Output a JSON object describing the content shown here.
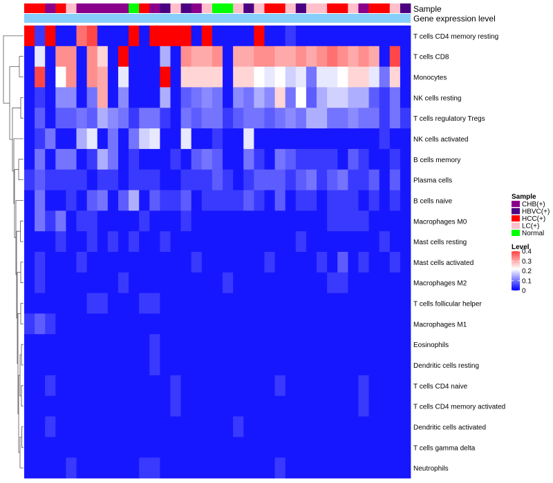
{
  "chart_data": {
    "type": "heatmap",
    "title": "",
    "annotation_tracks": [
      "Sample",
      "Gene expression level"
    ],
    "sample_legend": {
      "title": "Sample",
      "entries": [
        {
          "label": "CHB(+)",
          "color": "#8B008B"
        },
        {
          "label": "HBVC(+)",
          "color": "#4B0082"
        },
        {
          "label": "HCC(+)",
          "color": "#FF0000"
        },
        {
          "label": "LC(+)",
          "color": "#FFC0CB"
        },
        {
          "label": "Normal",
          "color": "#00FF00"
        }
      ]
    },
    "level_legend": {
      "title": "Level",
      "ticks": [
        "0.4",
        "0.3",
        "0.2",
        "0.1",
        "0"
      ],
      "range": [
        0,
        0.4
      ]
    },
    "colors": {
      "low": "#0000FF",
      "mid": "#FFFFFF",
      "high": "#FF0000",
      "expr_bar": "#87CEFA"
    },
    "sample_groups": [
      "HCC",
      "HCC",
      "CHB",
      "HCC",
      "LC",
      "CHB",
      "CHB",
      "CHB",
      "CHB",
      "CHB",
      "Normal",
      "HCC",
      "CHB",
      "HBVC",
      "LC",
      "HBVC",
      "CHB",
      "LC",
      "Normal",
      "Normal",
      "LC",
      "HBVC",
      "LC",
      "HCC",
      "HCC",
      "LC",
      "HBVC",
      "LC",
      "LC",
      "HCC",
      "HCC",
      "LC",
      "CHB",
      "HCC",
      "HCC",
      "LC",
      "HBVC"
    ],
    "cell_types": [
      "T cells CD4 memory resting",
      "T cells CD8",
      "Monocytes",
      "NK cells resting",
      "T cells regulatory  Tregs",
      "NK cells activated",
      "B cells memory",
      "Plasma cells",
      "B cells naive",
      "Macrophages M0",
      "Mast cells resting",
      "Mast cells activated",
      "Macrophages M2",
      "T cells follicular helper",
      "Macrophages M1",
      "Eosinophils",
      "Dendritic cells resting",
      "T cells CD4 naive",
      "T cells CD4 memory activated",
      "Dendritic cells activated",
      "T cells gamma delta",
      "Neutrophils"
    ],
    "values": [
      [
        0.4,
        0.05,
        0.4,
        0.02,
        0.02,
        0.32,
        0.35,
        0.02,
        0.02,
        0.02,
        0.4,
        0.02,
        0.4,
        0.4,
        0.4,
        0.4,
        0.02,
        0.4,
        0.02,
        0.02,
        0.02,
        0.02,
        0.4,
        0.02,
        0.02,
        0.05,
        0.02,
        0.02,
        0.02,
        0.02,
        0.02,
        0.02,
        0.02,
        0.02,
        0.02,
        0.02,
        0.02
      ],
      [
        0.02,
        0.2,
        0.02,
        0.3,
        0.3,
        0.02,
        0.3,
        0.25,
        0.02,
        0.4,
        0.02,
        0.02,
        0.02,
        0.15,
        0.02,
        0.3,
        0.28,
        0.28,
        0.3,
        0.02,
        0.28,
        0.28,
        0.3,
        0.3,
        0.28,
        0.28,
        0.3,
        0.28,
        0.3,
        0.32,
        0.3,
        0.28,
        0.3,
        0.28,
        0.02,
        0.35,
        0.02
      ],
      [
        0.02,
        0.35,
        0.02,
        0.22,
        0.3,
        0.02,
        0.3,
        0.28,
        0.02,
        0.2,
        0.02,
        0.02,
        0.02,
        0.4,
        0.02,
        0.25,
        0.25,
        0.25,
        0.25,
        0.02,
        0.25,
        0.25,
        0.22,
        0.2,
        0.22,
        0.18,
        0.2,
        0.1,
        0.2,
        0.2,
        0.22,
        0.25,
        0.25,
        0.2,
        0.1,
        0.25,
        0.02
      ],
      [
        0.02,
        0.05,
        0.02,
        0.12,
        0.12,
        0.02,
        0.1,
        0.28,
        0.02,
        0.12,
        0.02,
        0.02,
        0.02,
        0.15,
        0.02,
        0.08,
        0.1,
        0.12,
        0.1,
        0.02,
        0.12,
        0.1,
        0.15,
        0.12,
        0.25,
        0.1,
        0.22,
        0.08,
        0.15,
        0.18,
        0.18,
        0.15,
        0.15,
        0.08,
        0.05,
        0.1,
        0.02
      ],
      [
        0.02,
        0.08,
        0.02,
        0.08,
        0.08,
        0.1,
        0.08,
        0.15,
        0.12,
        0.1,
        0.05,
        0.1,
        0.1,
        0.05,
        0.02,
        0.1,
        0.08,
        0.1,
        0.1,
        0.05,
        0.08,
        0.1,
        0.1,
        0.08,
        0.1,
        0.12,
        0.1,
        0.15,
        0.15,
        0.1,
        0.1,
        0.12,
        0.1,
        0.1,
        0.05,
        0.1,
        0.05
      ],
      [
        0.02,
        0.05,
        0.1,
        0.02,
        0.02,
        0.15,
        0.2,
        0.02,
        0.1,
        0.02,
        0.1,
        0.18,
        0.2,
        0.02,
        0.02,
        0.2,
        0.02,
        0.02,
        0.05,
        0.02,
        0.02,
        0.2,
        0.02,
        0.02,
        0.02,
        0.02,
        0.02,
        0.02,
        0.02,
        0.02,
        0.02,
        0.02,
        0.02,
        0.02,
        0.05,
        0.02,
        0.02
      ],
      [
        0.02,
        0.1,
        0.02,
        0.1,
        0.1,
        0.02,
        0.05,
        0.15,
        0.1,
        0.02,
        0.05,
        0.02,
        0.02,
        0.02,
        0.05,
        0.02,
        0.08,
        0.1,
        0.08,
        0.02,
        0.02,
        0.1,
        0.05,
        0.02,
        0.1,
        0.08,
        0.05,
        0.05,
        0.05,
        0.05,
        0.02,
        0.08,
        0.05,
        0.02,
        0.02,
        0.05,
        0.02
      ],
      [
        0.05,
        0.08,
        0.05,
        0.05,
        0.05,
        0.05,
        0.02,
        0.05,
        0.05,
        0.02,
        0.05,
        0.05,
        0.05,
        0.02,
        0.02,
        0.05,
        0.05,
        0.05,
        0.08,
        0.05,
        0.02,
        0.05,
        0.08,
        0.08,
        0.08,
        0.05,
        0.08,
        0.1,
        0.05,
        0.08,
        0.1,
        0.05,
        0.05,
        0.08,
        0.02,
        0.08,
        0.02
      ],
      [
        0.02,
        0.1,
        0.02,
        0.02,
        0.05,
        0.02,
        0.08,
        0.1,
        0.02,
        0.08,
        0.15,
        0.02,
        0.08,
        0.05,
        0.05,
        0.08,
        0.02,
        0.05,
        0.05,
        0.05,
        0.05,
        0.08,
        0.05,
        0.02,
        0.08,
        0.02,
        0.05,
        0.05,
        0.02,
        0.05,
        0.05,
        0.05,
        0.02,
        0.05,
        0.02,
        0.05,
        0.02
      ],
      [
        0.02,
        0.1,
        0.05,
        0.1,
        0.02,
        0.05,
        0.05,
        0.02,
        0.02,
        0.02,
        0.02,
        0.05,
        0.02,
        0.02,
        0.02,
        0.05,
        0.02,
        0.02,
        0.02,
        0.02,
        0.02,
        0.02,
        0.02,
        0.02,
        0.02,
        0.02,
        0.02,
        0.02,
        0.02,
        0.05,
        0.05,
        0.05,
        0.05,
        0.02,
        0.02,
        0.02,
        0.02
      ],
      [
        0.02,
        0.02,
        0.02,
        0.05,
        0.02,
        0.02,
        0.05,
        0.02,
        0.05,
        0.02,
        0.05,
        0.02,
        0.02,
        0.05,
        0.02,
        0.02,
        0.02,
        0.02,
        0.02,
        0.02,
        0.02,
        0.02,
        0.02,
        0.02,
        0.02,
        0.02,
        0.05,
        0.02,
        0.02,
        0.02,
        0.02,
        0.02,
        0.02,
        0.02,
        0.05,
        0.02,
        0.02
      ],
      [
        0.02,
        0.05,
        0.02,
        0.02,
        0.02,
        0.05,
        0.02,
        0.02,
        0.02,
        0.02,
        0.02,
        0.02,
        0.02,
        0.02,
        0.02,
        0.02,
        0.05,
        0.02,
        0.02,
        0.02,
        0.02,
        0.02,
        0.02,
        0.05,
        0.02,
        0.02,
        0.02,
        0.02,
        0.05,
        0.02,
        0.08,
        0.02,
        0.05,
        0.02,
        0.02,
        0.05,
        0.02
      ],
      [
        0.02,
        0.05,
        0.02,
        0.02,
        0.02,
        0.02,
        0.02,
        0.02,
        0.02,
        0.05,
        0.02,
        0.02,
        0.02,
        0.02,
        0.02,
        0.02,
        0.02,
        0.02,
        0.02,
        0.05,
        0.02,
        0.02,
        0.02,
        0.02,
        0.02,
        0.02,
        0.02,
        0.02,
        0.02,
        0.05,
        0.05,
        0.02,
        0.02,
        0.02,
        0.02,
        0.02,
        0.02
      ],
      [
        0.02,
        0.02,
        0.02,
        0.02,
        0.02,
        0.02,
        0.05,
        0.05,
        0.02,
        0.02,
        0.02,
        0.05,
        0.05,
        0.02,
        0.02,
        0.02,
        0.02,
        0.02,
        0.02,
        0.02,
        0.02,
        0.02,
        0.02,
        0.02,
        0.02,
        0.02,
        0.02,
        0.02,
        0.02,
        0.02,
        0.02,
        0.02,
        0.02,
        0.02,
        0.02,
        0.02,
        0.02
      ],
      [
        0.05,
        0.08,
        0.05,
        0.02,
        0.02,
        0.02,
        0.02,
        0.02,
        0.02,
        0.02,
        0.02,
        0.02,
        0.02,
        0.02,
        0.02,
        0.02,
        0.02,
        0.02,
        0.02,
        0.02,
        0.02,
        0.02,
        0.02,
        0.02,
        0.02,
        0.02,
        0.02,
        0.02,
        0.02,
        0.02,
        0.02,
        0.02,
        0.02,
        0.02,
        0.02,
        0.02,
        0.02
      ],
      [
        0.02,
        0.02,
        0.02,
        0.02,
        0.02,
        0.02,
        0.02,
        0.02,
        0.02,
        0.02,
        0.02,
        0.02,
        0.05,
        0.02,
        0.02,
        0.02,
        0.02,
        0.02,
        0.02,
        0.02,
        0.02,
        0.02,
        0.02,
        0.02,
        0.02,
        0.02,
        0.02,
        0.02,
        0.02,
        0.02,
        0.02,
        0.02,
        0.02,
        0.02,
        0.02,
        0.02,
        0.02
      ],
      [
        0.02,
        0.02,
        0.02,
        0.02,
        0.02,
        0.02,
        0.02,
        0.02,
        0.02,
        0.02,
        0.02,
        0.02,
        0.05,
        0.02,
        0.02,
        0.02,
        0.02,
        0.02,
        0.02,
        0.02,
        0.02,
        0.02,
        0.02,
        0.02,
        0.02,
        0.02,
        0.02,
        0.02,
        0.02,
        0.02,
        0.02,
        0.02,
        0.02,
        0.02,
        0.02,
        0.02,
        0.02
      ],
      [
        0.02,
        0.02,
        0.05,
        0.02,
        0.02,
        0.02,
        0.02,
        0.02,
        0.02,
        0.02,
        0.02,
        0.02,
        0.02,
        0.02,
        0.05,
        0.02,
        0.02,
        0.02,
        0.02,
        0.02,
        0.02,
        0.02,
        0.02,
        0.02,
        0.05,
        0.02,
        0.02,
        0.02,
        0.02,
        0.02,
        0.02,
        0.02,
        0.05,
        0.02,
        0.02,
        0.02,
        0.02
      ],
      [
        0.02,
        0.02,
        0.02,
        0.02,
        0.02,
        0.02,
        0.02,
        0.02,
        0.02,
        0.02,
        0.02,
        0.02,
        0.02,
        0.02,
        0.05,
        0.02,
        0.02,
        0.02,
        0.02,
        0.02,
        0.02,
        0.02,
        0.02,
        0.02,
        0.02,
        0.02,
        0.02,
        0.02,
        0.02,
        0.02,
        0.02,
        0.02,
        0.05,
        0.02,
        0.02,
        0.02,
        0.02
      ],
      [
        0.02,
        0.02,
        0.05,
        0.02,
        0.02,
        0.02,
        0.02,
        0.02,
        0.02,
        0.02,
        0.02,
        0.02,
        0.02,
        0.02,
        0.02,
        0.02,
        0.02,
        0.02,
        0.02,
        0.02,
        0.05,
        0.02,
        0.02,
        0.02,
        0.02,
        0.02,
        0.02,
        0.02,
        0.02,
        0.02,
        0.02,
        0.02,
        0.02,
        0.02,
        0.02,
        0.02,
        0.02
      ],
      [
        0.02,
        0.02,
        0.02,
        0.02,
        0.02,
        0.02,
        0.02,
        0.02,
        0.02,
        0.02,
        0.02,
        0.02,
        0.02,
        0.02,
        0.02,
        0.02,
        0.02,
        0.02,
        0.02,
        0.02,
        0.02,
        0.02,
        0.02,
        0.02,
        0.02,
        0.02,
        0.02,
        0.02,
        0.02,
        0.02,
        0.02,
        0.02,
        0.02,
        0.02,
        0.02,
        0.02,
        0.02
      ],
      [
        0.02,
        0.02,
        0.02,
        0.02,
        0.05,
        0.02,
        0.02,
        0.02,
        0.02,
        0.02,
        0.02,
        0.05,
        0.05,
        0.02,
        0.02,
        0.02,
        0.02,
        0.02,
        0.02,
        0.02,
        0.02,
        0.02,
        0.02,
        0.02,
        0.05,
        0.02,
        0.02,
        0.02,
        0.02,
        0.02,
        0.02,
        0.02,
        0.02,
        0.02,
        0.02,
        0.02,
        0.02
      ]
    ]
  }
}
